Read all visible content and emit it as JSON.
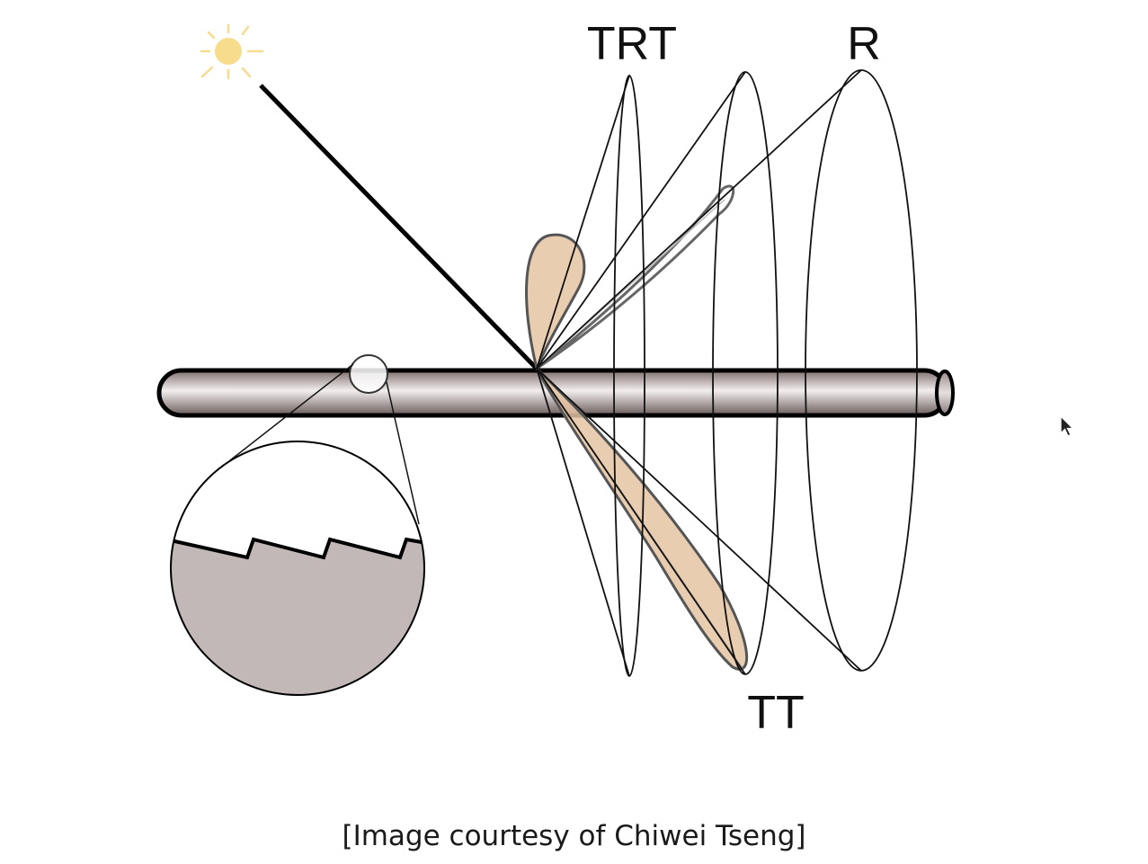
{
  "labels": {
    "trt": "TRT",
    "r": "R",
    "tt": "TT"
  },
  "caption": "[Image courtesy of Chiwei Tseng]",
  "icons": {
    "light_source": "sun-icon",
    "pointer": "mouse-cursor-icon"
  },
  "colors": {
    "hair_fill": "#a89a98",
    "lobe_fill": "#e5c4a3",
    "cuticle_fill": "#c2b8b7",
    "sun": "#f6dc8c",
    "stroke": "#111111"
  }
}
